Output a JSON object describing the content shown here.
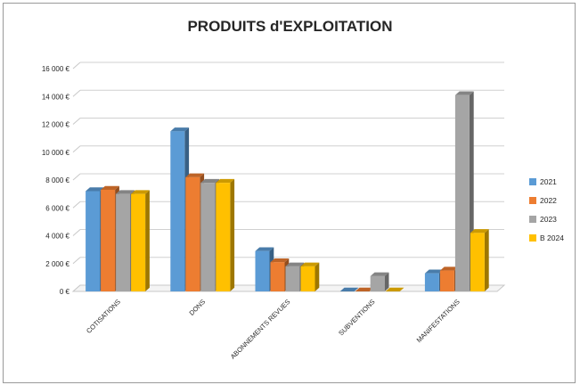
{
  "chart_data": {
    "type": "bar",
    "title": "PRODUITS d'EXPLOITATION",
    "categories": [
      "COTISATIONS",
      "DONS",
      "ABONNEMENTS REVUES",
      "SUBVENTIONS",
      "MANIFESTATIONS"
    ],
    "series": [
      {
        "name": "2021",
        "color": "#5b9bd5",
        "values": [
          7200,
          11500,
          2900,
          0,
          1300
        ]
      },
      {
        "name": "2022",
        "color": "#ed7d31",
        "values": [
          7300,
          8200,
          2100,
          0,
          1500
        ]
      },
      {
        "name": "2023",
        "color": "#a5a5a5",
        "values": [
          7000,
          7800,
          1800,
          1100,
          14100
        ]
      },
      {
        "name": "B 2024",
        "color": "#ffc000",
        "values": [
          7000,
          7800,
          1800,
          0,
          4200
        ]
      }
    ],
    "y_ticks": [
      "0 €",
      "2 000 €",
      "4 000 €",
      "6 000 €",
      "8 000 €",
      "10 000 €",
      "12 000 €",
      "14 000 €",
      "16 000 €"
    ],
    "ylim": [
      0,
      16000
    ],
    "xlabel": "",
    "ylabel": "",
    "grid": true,
    "legend_position": "right",
    "style": "3d-clustered-column"
  }
}
